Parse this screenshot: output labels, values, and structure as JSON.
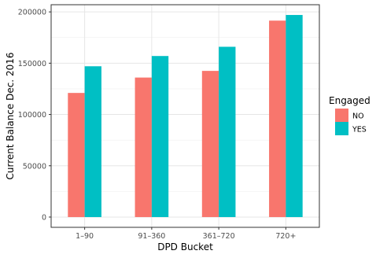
{
  "chart_data": {
    "type": "bar",
    "categories": [
      "1–90",
      "91–360",
      "361–720",
      "720+"
    ],
    "series": [
      {
        "name": "NO",
        "color": "#F8766D",
        "values": [
          121000,
          136000,
          142500,
          191500
        ]
      },
      {
        "name": "YES",
        "color": "#00BFC4",
        "values": [
          147000,
          157000,
          166000,
          197000
        ]
      }
    ],
    "xlabel": "DPD Bucket",
    "ylabel": "Current Balance Dec. 2016",
    "ylim": [
      -10000,
      207000
    ],
    "yticks": [
      0,
      50000,
      100000,
      150000,
      200000
    ],
    "ytick_labels": [
      "0",
      "50000",
      "100000",
      "150000",
      "200000"
    ],
    "legend": {
      "title": "Engaged",
      "position": "right"
    },
    "grid": true,
    "theme": "bw"
  }
}
